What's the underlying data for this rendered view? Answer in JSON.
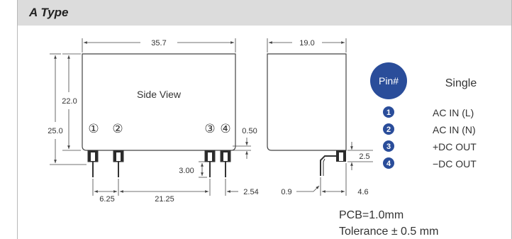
{
  "header": {
    "title": "A Type"
  },
  "side_view": {
    "label": "Side View",
    "dim_width": "35.7",
    "dim_height_body": "22.0",
    "dim_height_total": "25.0",
    "dim_standoff": "0.50",
    "dim_pin_length": "3.00",
    "dim_pitch_a": "6.25",
    "dim_pitch_b": "21.25",
    "dim_pitch_c": "2.54",
    "pin_numbers": [
      "①",
      "②",
      "③",
      "④"
    ]
  },
  "end_view": {
    "dim_width": "19.0",
    "dim_pin_height": "2.5",
    "dim_left": "0.9",
    "dim_right": "4.6"
  },
  "pin_table": {
    "header_badge": "Pin#",
    "header_column": "Single",
    "rows": [
      {
        "num": "1",
        "label": "AC IN (L)"
      },
      {
        "num": "2",
        "label": "AC IN (N)"
      },
      {
        "num": "3",
        "label": "+DC OUT"
      },
      {
        "num": "4",
        "label": "−DC OUT"
      }
    ]
  },
  "notes": {
    "pcb": "PCB=1.0mm",
    "tolerance": "Tolerance ± 0.5 mm"
  },
  "colors": {
    "badge": "#2a4d9a",
    "header_bg": "#dcdcdc",
    "line": "#444444"
  }
}
